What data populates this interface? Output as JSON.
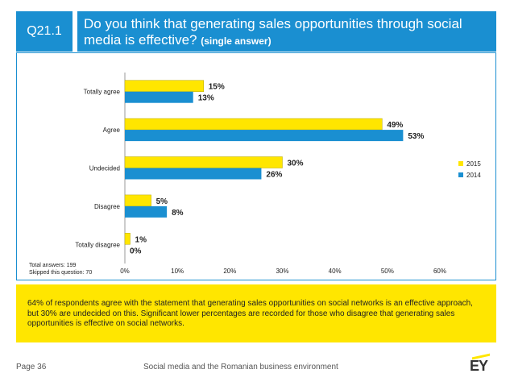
{
  "header": {
    "tag": "Q21.1",
    "question": "Do you think that generating sales opportunities through social media is effective?",
    "subtitle": "(single answer)"
  },
  "colors": {
    "y2015": "#ffe600",
    "y2014": "#1a8fd1",
    "accent": "#1a8fd1"
  },
  "chart_data": {
    "type": "bar",
    "orientation": "horizontal",
    "categories": [
      "Totally agree",
      "Agree",
      "Undecided",
      "Disagree",
      "Totally disagree"
    ],
    "series": [
      {
        "name": "2015",
        "values": [
          15,
          49,
          30,
          5,
          1
        ],
        "labels": [
          "15%",
          "49%",
          "30%",
          "5%",
          "1%"
        ]
      },
      {
        "name": "2014",
        "values": [
          13,
          53,
          26,
          8,
          0
        ],
        "labels": [
          "13%",
          "53%",
          "26%",
          "8%",
          "0%"
        ]
      }
    ],
    "xticks": [
      "0%",
      "10%",
      "20%",
      "30%",
      "40%",
      "50%",
      "60%"
    ],
    "xlim": [
      0,
      60
    ],
    "legend": [
      "2015",
      "2014"
    ],
    "legend_position": "right"
  },
  "totals": {
    "answers": "Total answers: 199",
    "skipped": "Skipped this question: 70"
  },
  "note": "64% of respondents agree with the statement that generating sales opportunities on social networks is an effective approach, but 30% are undecided on this. Significant lower percentages are recorded for those who disagree that generating sales opportunities is effective on social networks.",
  "footer": {
    "page": "Page 36",
    "title": "Social media and the Romanian business environment",
    "logo": "EY"
  }
}
